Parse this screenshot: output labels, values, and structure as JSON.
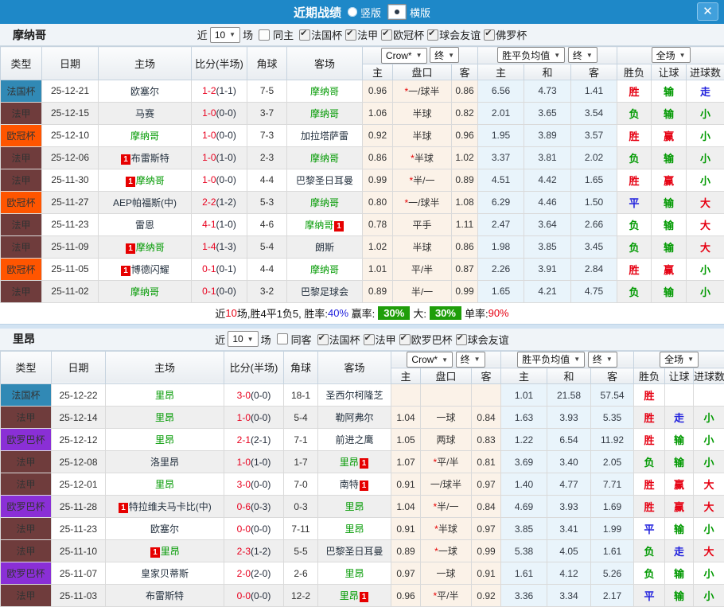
{
  "consts": {
    "badge_label": "1",
    "star": "*",
    "close_glyph": "✕"
  },
  "titlebar": {
    "title": "近期战绩",
    "radios": [
      {
        "label": "竖版",
        "selected": false
      },
      {
        "label": "横版",
        "selected": true
      }
    ]
  },
  "columns": {
    "main": [
      "类型",
      "日期",
      "主场",
      "比分(半场)",
      "角球",
      "客场"
    ],
    "sub": [
      "主",
      "盘口",
      "客",
      "主",
      "和",
      "客",
      "胜负",
      "让球",
      "进球数"
    ],
    "selects": {
      "crow": "Crow*",
      "final1": "终",
      "avg": "胜平负均值",
      "final2": "终",
      "full": "全场"
    }
  },
  "type_colors": {
    "法国杯": "#3189b5",
    "法甲": "#6f3c3c",
    "欧冠杯": "#ff5500",
    "欧罗巴杯": "#8a2fd6"
  },
  "result_colors": {
    "胜": "#e60012",
    "负": "#009900",
    "平": "#2222dd",
    "输": "#009900",
    "赢": "#e60012",
    "走": "#2222dd",
    "大": "#e60012",
    "小": "#009900"
  },
  "sections": [
    {
      "team": "摩纳哥",
      "filter": {
        "near": "近",
        "count": "10",
        "unit": "场",
        "same": {
          "label": "同主",
          "checked": false
        },
        "leagues": [
          {
            "label": "法国杯",
            "checked": true
          },
          {
            "label": "法甲",
            "checked": true
          },
          {
            "label": "欧冠杯",
            "checked": true
          },
          {
            "label": "球会友谊",
            "checked": true
          },
          {
            "label": "佛罗杯",
            "checked": true
          }
        ]
      },
      "rows": [
        {
          "t": "法国杯",
          "d": "25-12-21",
          "h": "欧塞尔",
          "hg": 0,
          "hb": "",
          "s": "1-2",
          "sh": "(1-1)",
          "c": "7-5",
          "a": "摩纳哥",
          "ag": 1,
          "ab": "",
          "m1": "0.96",
          "st": 1,
          "hc": "一/球半",
          "m2": "0.86",
          "w1": "6.56",
          "w2": "4.73",
          "w3": "1.41",
          "r1": "胜",
          "r2": "输",
          "r3": "走"
        },
        {
          "t": "法甲",
          "d": "25-12-15",
          "h": "马赛",
          "hg": 0,
          "hb": "",
          "s": "1-0",
          "sh": "(0-0)",
          "c": "3-7",
          "a": "摩纳哥",
          "ag": 1,
          "ab": "",
          "m1": "1.06",
          "st": 0,
          "hc": "半球",
          "m2": "0.82",
          "w1": "2.01",
          "w2": "3.65",
          "w3": "3.54",
          "r1": "负",
          "r2": "输",
          "r3": "小"
        },
        {
          "t": "欧冠杯",
          "d": "25-12-10",
          "h": "摩纳哥",
          "hg": 1,
          "hb": "",
          "s": "1-0",
          "sh": "(0-0)",
          "c": "7-3",
          "a": "加拉塔萨雷",
          "ag": 0,
          "ab": "",
          "m1": "0.92",
          "st": 0,
          "hc": "半球",
          "m2": "0.96",
          "w1": "1.95",
          "w2": "3.89",
          "w3": "3.57",
          "r1": "胜",
          "r2": "赢",
          "r3": "小"
        },
        {
          "t": "法甲",
          "d": "25-12-06",
          "h": "布雷斯特",
          "hg": 0,
          "hb": "b",
          "s": "1-0",
          "sh": "(1-0)",
          "c": "2-3",
          "a": "摩纳哥",
          "ag": 1,
          "ab": "",
          "m1": "0.86",
          "st": 1,
          "hc": "半球",
          "m2": "1.02",
          "w1": "3.37",
          "w2": "3.81",
          "w3": "2.02",
          "r1": "负",
          "r2": "输",
          "r3": "小"
        },
        {
          "t": "法甲",
          "d": "25-11-30",
          "h": "摩纳哥",
          "hg": 1,
          "hb": "b",
          "s": "1-0",
          "sh": "(0-0)",
          "c": "4-4",
          "a": "巴黎圣日耳曼",
          "ag": 0,
          "ab": "",
          "m1": "0.99",
          "st": 1,
          "hc": "半/一",
          "m2": "0.89",
          "w1": "4.51",
          "w2": "4.42",
          "w3": "1.65",
          "r1": "胜",
          "r2": "赢",
          "r3": "小"
        },
        {
          "t": "欧冠杯",
          "d": "25-11-27",
          "h": "AEP帕福斯(中)",
          "hg": 0,
          "hb": "",
          "s": "2-2",
          "sh": "(1-2)",
          "c": "5-3",
          "a": "摩纳哥",
          "ag": 1,
          "ab": "",
          "m1": "0.80",
          "st": 1,
          "hc": "一/球半",
          "m2": "1.08",
          "w1": "6.29",
          "w2": "4.46",
          "w3": "1.50",
          "r1": "平",
          "r2": "输",
          "r3": "大"
        },
        {
          "t": "法甲",
          "d": "25-11-23",
          "h": "雷恩",
          "hg": 0,
          "hb": "",
          "s": "4-1",
          "sh": "(1-0)",
          "c": "4-6",
          "a": "摩纳哥",
          "ag": 1,
          "ab": "a",
          "m1": "0.78",
          "st": 0,
          "hc": "平手",
          "m2": "1.11",
          "w1": "2.47",
          "w2": "3.64",
          "w3": "2.66",
          "r1": "负",
          "r2": "输",
          "r3": "大"
        },
        {
          "t": "法甲",
          "d": "25-11-09",
          "h": "摩纳哥",
          "hg": 1,
          "hb": "b",
          "s": "1-4",
          "sh": "(1-3)",
          "c": "5-4",
          "a": "朗斯",
          "ag": 0,
          "ab": "",
          "m1": "1.02",
          "st": 0,
          "hc": "半球",
          "m2": "0.86",
          "w1": "1.98",
          "w2": "3.85",
          "w3": "3.45",
          "r1": "负",
          "r2": "输",
          "r3": "大"
        },
        {
          "t": "欧冠杯",
          "d": "25-11-05",
          "h": "博德闪耀",
          "hg": 0,
          "hb": "b",
          "s": "0-1",
          "sh": "(0-1)",
          "c": "4-4",
          "a": "摩纳哥",
          "ag": 1,
          "ab": "",
          "m1": "1.01",
          "st": 0,
          "hc": "平/半",
          "m2": "0.87",
          "w1": "2.26",
          "w2": "3.91",
          "w3": "2.84",
          "r1": "胜",
          "r2": "赢",
          "r3": "小"
        },
        {
          "t": "法甲",
          "d": "25-11-02",
          "h": "摩纳哥",
          "hg": 1,
          "hb": "",
          "s": "0-1",
          "sh": "(0-0)",
          "c": "3-2",
          "a": "巴黎足球会",
          "ag": 0,
          "ab": "",
          "m1": "0.89",
          "st": 0,
          "hc": "半/一",
          "m2": "0.99",
          "w1": "1.65",
          "w2": "4.21",
          "w3": "4.75",
          "r1": "负",
          "r2": "输",
          "r3": "小"
        }
      ],
      "summary": {
        "seg1": "近",
        "num": "10",
        "seg2": "场,胜4平1负5, 胜率:",
        "rate": "40%",
        "seg3": "赢率:",
        "box1": "30%",
        "seg4": "大:",
        "box2": "30%",
        "seg5": "单率:",
        "pct": "90%"
      }
    },
    {
      "team": "里昂",
      "filter": {
        "near": "近",
        "count": "10",
        "unit": "场",
        "same": {
          "label": "同客",
          "checked": false
        },
        "leagues": [
          {
            "label": "法国杯",
            "checked": true
          },
          {
            "label": "法甲",
            "checked": true
          },
          {
            "label": "欧罗巴杯",
            "checked": true
          },
          {
            "label": "球会友谊",
            "checked": true
          }
        ]
      },
      "rows": [
        {
          "t": "法国杯",
          "d": "25-12-22",
          "h": "里昂",
          "hg": 1,
          "hb": "",
          "s": "3-0",
          "sh": "(0-0)",
          "c": "18-1",
          "a": "圣西尔柯隆芝",
          "ag": 0,
          "ab": "",
          "m1": "",
          "st": 0,
          "hc": "",
          "m2": "",
          "w1": "1.01",
          "w2": "21.58",
          "w3": "57.54",
          "r1": "胜",
          "r2": "",
          "r3": ""
        },
        {
          "t": "法甲",
          "d": "25-12-14",
          "h": "里昂",
          "hg": 1,
          "hb": "",
          "s": "1-0",
          "sh": "(0-0)",
          "c": "5-4",
          "a": "勒阿弗尔",
          "ag": 0,
          "ab": "",
          "m1": "1.04",
          "st": 0,
          "hc": "一球",
          "m2": "0.84",
          "w1": "1.63",
          "w2": "3.93",
          "w3": "5.35",
          "r1": "胜",
          "r2": "走",
          "r3": "小"
        },
        {
          "t": "欧罗巴杯",
          "d": "25-12-12",
          "h": "里昂",
          "hg": 1,
          "hb": "",
          "s": "2-1",
          "sh": "(2-1)",
          "c": "7-1",
          "a": "前进之鹰",
          "ag": 0,
          "ab": "",
          "m1": "1.05",
          "st": 0,
          "hc": "两球",
          "m2": "0.83",
          "w1": "1.22",
          "w2": "6.54",
          "w3": "11.92",
          "r1": "胜",
          "r2": "输",
          "r3": "小"
        },
        {
          "t": "法甲",
          "d": "25-12-08",
          "h": "洛里昂",
          "hg": 0,
          "hb": "",
          "s": "1-0",
          "sh": "(1-0)",
          "c": "1-7",
          "a": "里昂",
          "ag": 1,
          "ab": "a",
          "m1": "1.07",
          "st": 1,
          "hc": "平/半",
          "m2": "0.81",
          "w1": "3.69",
          "w2": "3.40",
          "w3": "2.05",
          "r1": "负",
          "r2": "输",
          "r3": "小"
        },
        {
          "t": "法甲",
          "d": "25-12-01",
          "h": "里昂",
          "hg": 1,
          "hb": "",
          "s": "3-0",
          "sh": "(0-0)",
          "c": "7-0",
          "a": "南特",
          "ag": 0,
          "ab": "a",
          "m1": "0.91",
          "st": 0,
          "hc": "一/球半",
          "m2": "0.97",
          "w1": "1.40",
          "w2": "4.77",
          "w3": "7.71",
          "r1": "胜",
          "r2": "赢",
          "r3": "大"
        },
        {
          "t": "欧罗巴杯",
          "d": "25-11-28",
          "h": "特拉维夫马卡比(中)",
          "hg": 0,
          "hb": "b",
          "s": "0-6",
          "sh": "(0-3)",
          "c": "0-3",
          "a": "里昂",
          "ag": 1,
          "ab": "",
          "m1": "1.04",
          "st": 1,
          "hc": "半/一",
          "m2": "0.84",
          "w1": "4.69",
          "w2": "3.93",
          "w3": "1.69",
          "r1": "胜",
          "r2": "赢",
          "r3": "大"
        },
        {
          "t": "法甲",
          "d": "25-11-23",
          "h": "欧塞尔",
          "hg": 0,
          "hb": "",
          "s": "0-0",
          "sh": "(0-0)",
          "c": "7-11",
          "a": "里昂",
          "ag": 1,
          "ab": "",
          "m1": "0.91",
          "st": 1,
          "hc": "半球",
          "m2": "0.97",
          "w1": "3.85",
          "w2": "3.41",
          "w3": "1.99",
          "r1": "平",
          "r2": "输",
          "r3": "小"
        },
        {
          "t": "法甲",
          "d": "25-11-10",
          "h": "里昂",
          "hg": 1,
          "hb": "b",
          "s": "2-3",
          "sh": "(1-2)",
          "c": "5-5",
          "a": "巴黎圣日耳曼",
          "ag": 0,
          "ab": "",
          "m1": "0.89",
          "st": 1,
          "hc": "一球",
          "m2": "0.99",
          "w1": "5.38",
          "w2": "4.05",
          "w3": "1.61",
          "r1": "负",
          "r2": "走",
          "r3": "大"
        },
        {
          "t": "欧罗巴杯",
          "d": "25-11-07",
          "h": "皇家贝蒂斯",
          "hg": 0,
          "hb": "",
          "s": "2-0",
          "sh": "(2-0)",
          "c": "2-6",
          "a": "里昂",
          "ag": 1,
          "ab": "",
          "m1": "0.97",
          "st": 0,
          "hc": "一球",
          "m2": "0.91",
          "w1": "1.61",
          "w2": "4.12",
          "w3": "5.26",
          "r1": "负",
          "r2": "输",
          "r3": "小"
        },
        {
          "t": "法甲",
          "d": "25-11-03",
          "h": "布雷斯特",
          "hg": 0,
          "hb": "",
          "s": "0-0",
          "sh": "(0-0)",
          "c": "12-2",
          "a": "里昂",
          "ag": 1,
          "ab": "a",
          "m1": "0.96",
          "st": 1,
          "hc": "平/半",
          "m2": "0.92",
          "w1": "3.36",
          "w2": "3.34",
          "w3": "2.17",
          "r1": "平",
          "r2": "输",
          "r3": "小"
        }
      ]
    }
  ]
}
